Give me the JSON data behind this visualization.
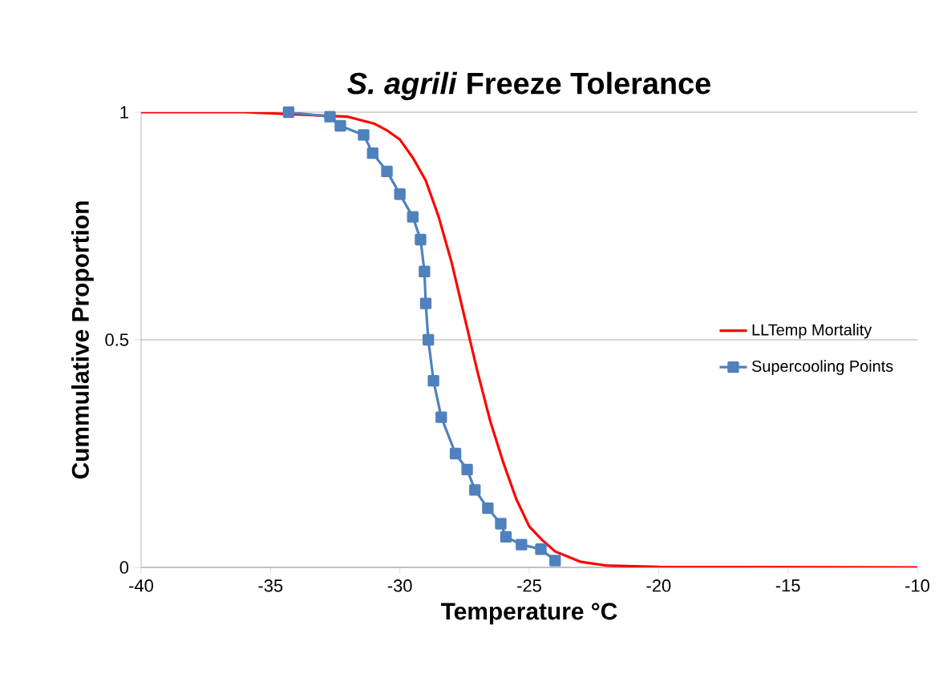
{
  "chart_data": {
    "type": "line",
    "title": "*S. agrili* Freeze Tolerance",
    "xlabel": "Temperature °C",
    "ylabel": "Cummulative Proportion",
    "xlim": [
      -40,
      -10
    ],
    "xticks": [
      -40,
      -35,
      -30,
      -25,
      -20,
      -15,
      -10
    ],
    "ylim": [
      0,
      1
    ],
    "yticks": [
      0,
      0.5,
      1
    ],
    "grid": "y",
    "legend": "right",
    "series": [
      {
        "name": "LLTemp Mortality",
        "color": "#ff0000",
        "marker": "none",
        "x": [
          -40,
          -36,
          -32,
          -31,
          -30.5,
          -30,
          -29.5,
          -29,
          -28.5,
          -28,
          -27.5,
          -27,
          -26.5,
          -26,
          -25.5,
          -25,
          -24.5,
          -24,
          -23,
          -22,
          -20,
          -10
        ],
        "values": [
          1,
          1,
          0.99,
          0.975,
          0.96,
          0.94,
          0.9,
          0.85,
          0.77,
          0.67,
          0.55,
          0.43,
          0.32,
          0.23,
          0.15,
          0.09,
          0.06,
          0.035,
          0.012,
          0.004,
          0.001,
          0
        ]
      },
      {
        "name": "Supercooling Points",
        "color": "#4f81bd",
        "marker": "square",
        "x": [
          -34.3,
          -32.7,
          -32.3,
          -31.4,
          -31.05,
          -30.5,
          -30.0,
          -29.5,
          -29.2,
          -29.05,
          -29.0,
          -28.9,
          -28.7,
          -28.4,
          -27.85,
          -27.4,
          -27.1,
          -26.6,
          -26.1,
          -25.9,
          -25.3,
          -24.55,
          -24.0
        ],
        "values": [
          1,
          0.99,
          0.97,
          0.95,
          0.91,
          0.87,
          0.82,
          0.77,
          0.72,
          0.65,
          0.58,
          0.5,
          0.41,
          0.33,
          0.25,
          0.215,
          0.17,
          0.13,
          0.096,
          0.067,
          0.05,
          0.04,
          0.015
        ]
      }
    ]
  }
}
